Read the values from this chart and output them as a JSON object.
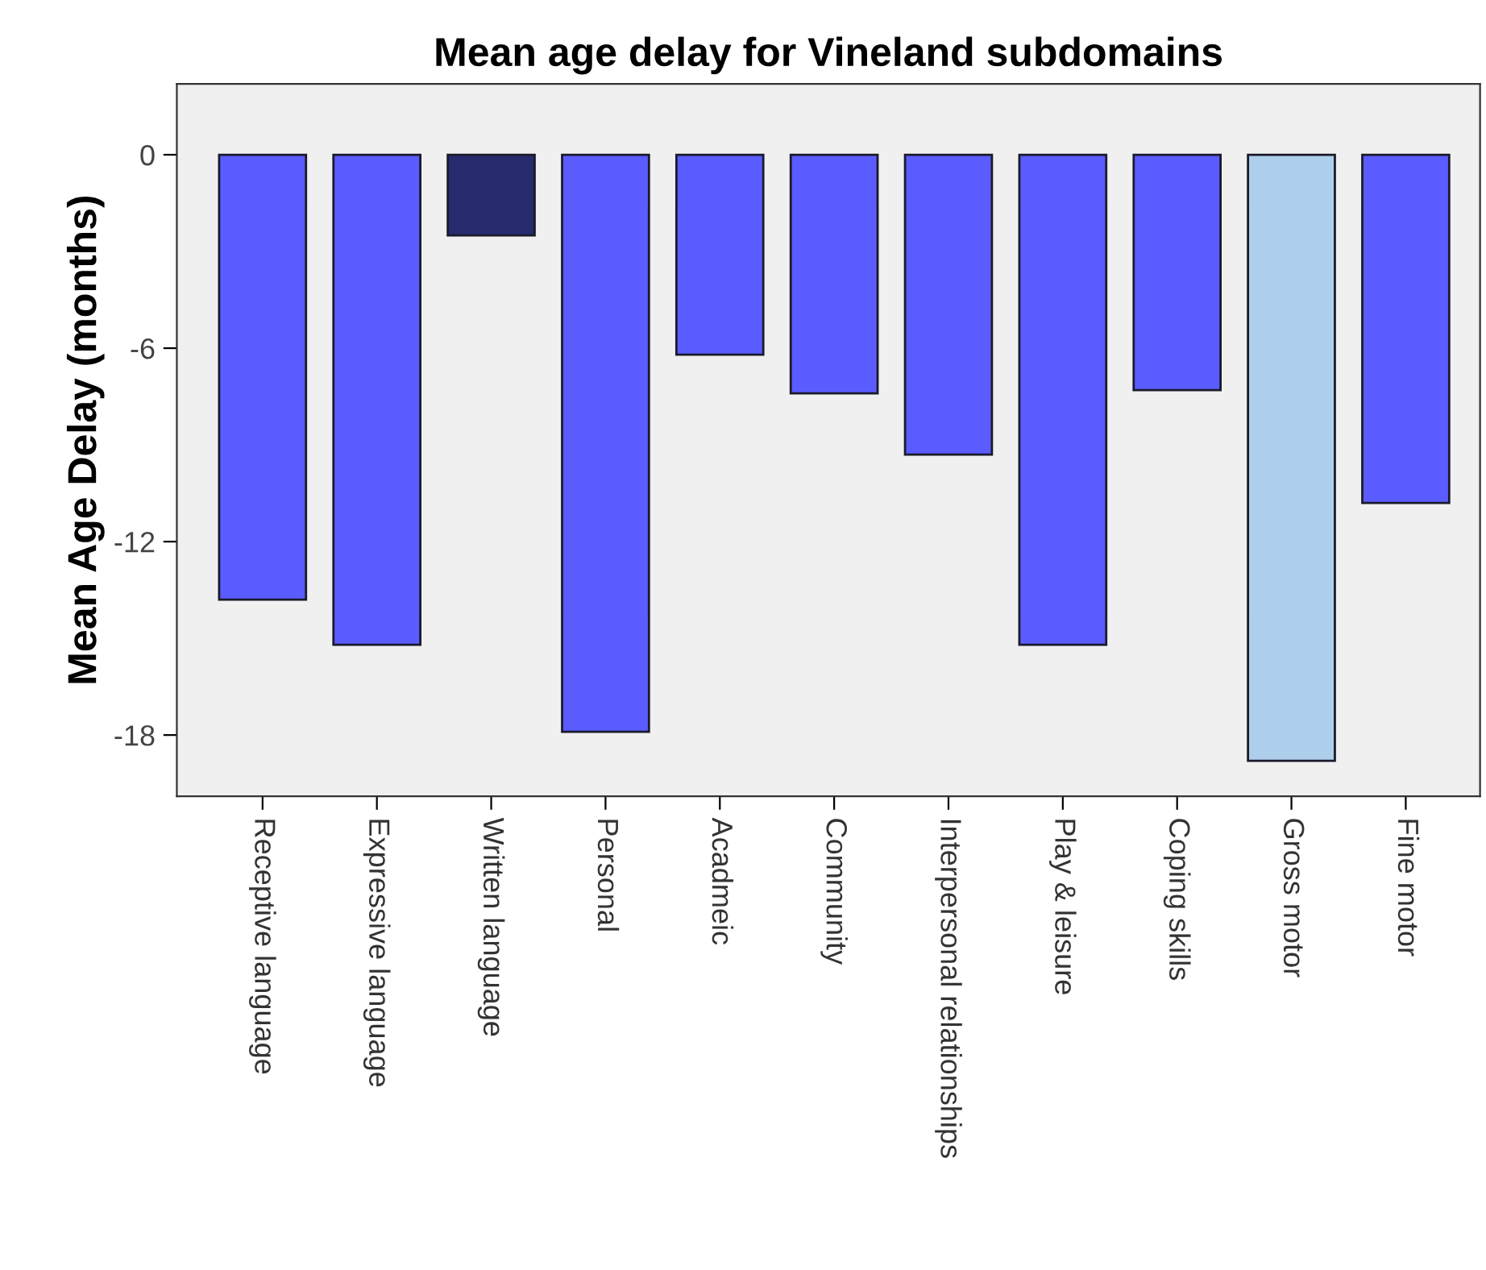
{
  "chart_data": {
    "type": "bar",
    "title": "Mean age delay for Vineland subdomains",
    "ylabel": "Mean Age Delay (months)",
    "categories": [
      "Receptive language",
      "Expressive language",
      "Written language",
      "Personal",
      "Acadmeic",
      "Community",
      "Interpersonal relationships",
      "Play & leisure",
      "Coping skills",
      "Gross motor",
      "Fine motor"
    ],
    "values": [
      -13.8,
      -15.2,
      -2.5,
      -17.9,
      -6.2,
      -7.4,
      -9.3,
      -15.2,
      -7.3,
      -18.8,
      -10.8
    ],
    "colors": [
      "#5a5cff",
      "#5a5cff",
      "#282a6e",
      "#5a5cff",
      "#5a5cff",
      "#5a5cff",
      "#5a5cff",
      "#5a5cff",
      "#5a5cff",
      "#aecfeb",
      "#5a5cff"
    ],
    "ylim": [
      -19.9,
      2.2
    ],
    "yticks": [
      0,
      -6,
      -12,
      -18
    ],
    "grid": false,
    "legend": false
  }
}
